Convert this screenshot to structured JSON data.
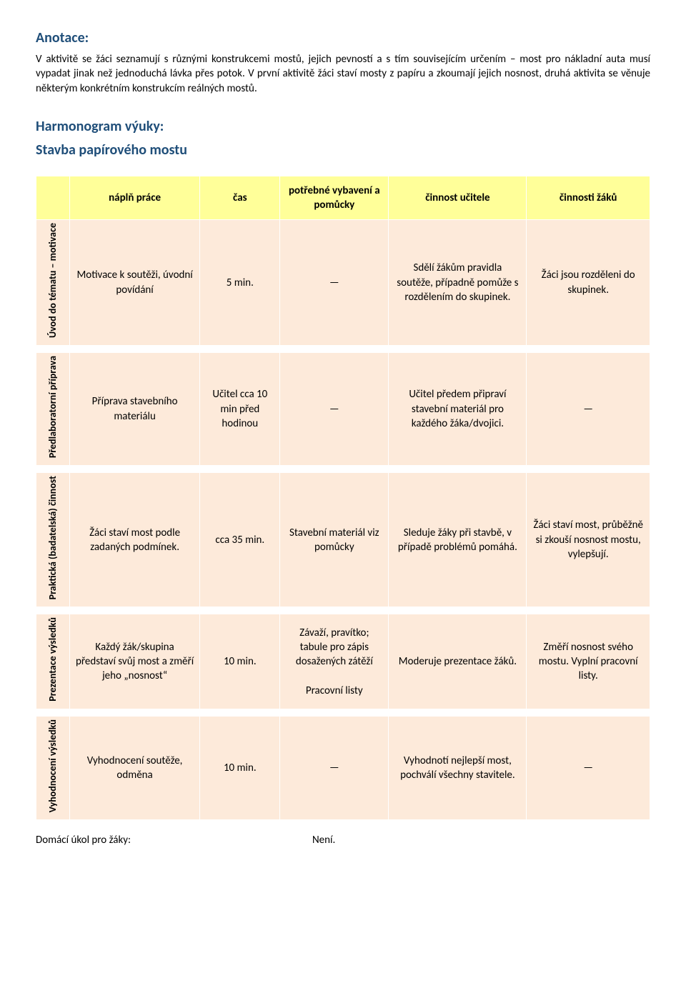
{
  "annotation": {
    "title": "Anotace:",
    "text": "V aktivitě se žáci seznamují s různými konstrukcemi mostů, jejich pevností a s tím souvisejícím určením – most pro nákladní auta musí vypadat jinak než jednoduchá lávka přes potok. V první aktivitě žáci staví mosty z papíru a zkoumají jejich nosnost, druhá aktivita se věnuje některým konkrétním konstrukcím reálných mostů."
  },
  "section2": {
    "heading1": "Harmonogram výuky:",
    "heading2": "Stavba papírového mostu"
  },
  "table": {
    "headers": {
      "c0": "",
      "c1": "náplň práce",
      "c2": "čas",
      "c3": "potřebné vybavení a pomůcky",
      "c4": "činnost učitele",
      "c5": "činnosti žáků"
    },
    "rows": [
      {
        "side": "Úvod do tématu – motivace",
        "c1": "Motivace k soutěži, úvodní povídání",
        "c2": "5 min.",
        "c3": "—",
        "c4": "Sdělí žákům pravidla soutěže, případně pomůže s rozdělením do skupinek.",
        "c5": "Žáci jsou rozděleni do skupinek."
      },
      {
        "side": "Předlaboratorní příprava",
        "c1": "Příprava stavebního materiálu",
        "c2": "Učitel cca 10 min před hodinou",
        "c3": "—",
        "c4": "Učitel předem připraví stavební materiál pro každého žáka/dvojici.",
        "c5": "—"
      },
      {
        "side": "Praktická (badatelská) činnost",
        "c1": "Žáci staví most podle zadaných podmínek.",
        "c2": "cca 35 min.",
        "c3": "Stavební materiál viz pomůcky",
        "c4": "Sleduje žáky při stavbě, v případě problémů pomáhá.",
        "c5": "Žáci staví most, průběžně si zkouší nosnost mostu, vylepšují."
      },
      {
        "side": "Prezentace výsledků",
        "c1": "Každý žák/skupina představí svůj most a změří jeho „nosnost“",
        "c2": "10 min.",
        "c3": "Závaží, pravítko; tabule pro zápis dosažených zátěží\nPracovní listy",
        "c4": "Moderuje prezentace žáků.",
        "c5": "Změří nosnost svého mostu. Vyplní pracovní listy."
      },
      {
        "side": "Vyhodnocení výsledků",
        "c1": "Vyhodnocení soutěže, odměna",
        "c2": "10 min.",
        "c3": "—",
        "c4": "Vyhodnotí nejlepší most, pochválí všechny stavitele.",
        "c5": "—"
      }
    ]
  },
  "footer": {
    "left": "Domácí úkol pro žáky:",
    "right": "Není."
  },
  "colors": {
    "heading": "#1f4e79",
    "header_bg": "#ffff99",
    "cell_bg": "#fdeada",
    "border": "#ffffff"
  }
}
